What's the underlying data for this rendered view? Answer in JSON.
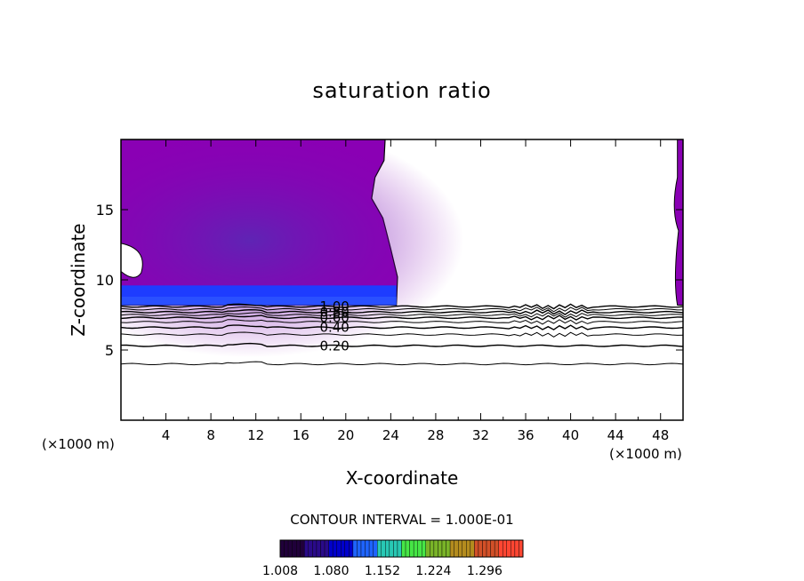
{
  "chart_data": {
    "type": "heatmap",
    "title": "saturation ratio",
    "xlabel": "X-coordinate",
    "ylabel": "Z-coordinate",
    "x_unit_left": "(×1000 m)",
    "x_unit_right": "(×1000 m)",
    "xlim": [
      0,
      50
    ],
    "ylim": [
      0,
      20
    ],
    "x_ticks": [
      4,
      8,
      12,
      16,
      20,
      24,
      28,
      32,
      36,
      40,
      44,
      48
    ],
    "y_ticks": [
      5,
      10,
      15
    ],
    "contour_interval_text": "CONTOUR INTERVAL = 1.000E-01",
    "colorbar": {
      "min": 1.008,
      "max": 1.35,
      "labels": [
        "1.008",
        "1.080",
        "1.152",
        "1.224",
        "1.296"
      ],
      "label_values": [
        1.008,
        1.08,
        1.152,
        1.224,
        1.296
      ],
      "colors": [
        "#20003a",
        "#2a0a8a",
        "#0000cc",
        "#1e64ff",
        "#28c8b4",
        "#46e646",
        "#7ab428",
        "#b48c1e",
        "#d25028",
        "#ff4632"
      ]
    },
    "contour_lines": [
      {
        "label": "0.20",
        "z": 5.3
      },
      {
        "label": "0.40",
        "z": 6.6
      },
      {
        "label": "0.60",
        "z": 7.3
      },
      {
        "label": "0.80",
        "z": 7.7
      },
      {
        "label": "1.00",
        "z": 8.1
      }
    ],
    "unlabeled_contour_lines": [
      {
        "value": 0.1,
        "z": 4.0
      },
      {
        "value": 0.3,
        "z": 6.1
      },
      {
        "value": 0.5,
        "z": 7.0
      },
      {
        "value": 0.7,
        "z": 7.5
      },
      {
        "value": 0.9,
        "z": 7.9
      }
    ],
    "supersaturated_region": {
      "x_range": [
        0,
        24.5
      ],
      "z_range": [
        8.2,
        20
      ],
      "right_edge_strip_x": [
        49.5,
        50
      ],
      "clear_area": "white",
      "fill_color": "#8a00b4",
      "darker_core_color": "#5a28b4",
      "base_band_color": "#1e3cff"
    }
  }
}
